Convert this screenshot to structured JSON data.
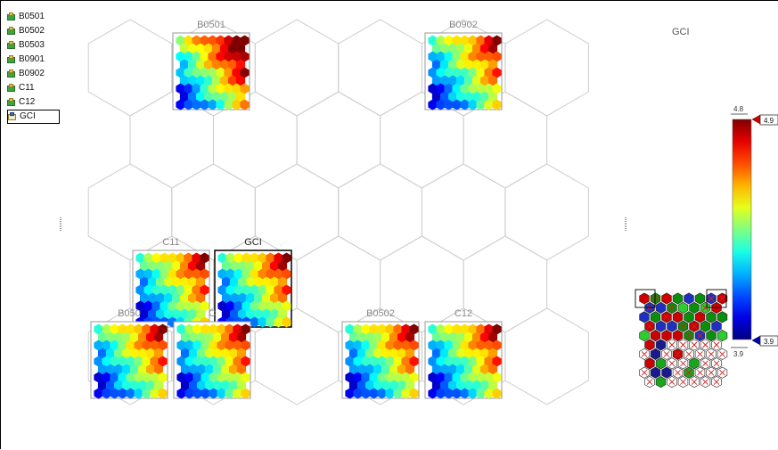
{
  "variables": [
    {
      "label": "B0501",
      "selected": false
    },
    {
      "label": "B0502",
      "selected": false
    },
    {
      "label": "B0503",
      "selected": false
    },
    {
      "label": "B0901",
      "selected": false
    },
    {
      "label": "B0902",
      "selected": false
    },
    {
      "label": "C11",
      "selected": false
    },
    {
      "label": "C12",
      "selected": false
    },
    {
      "label": "GCI",
      "selected": true
    }
  ],
  "component_planes": [
    {
      "label": "B0501",
      "cx": 0,
      "cy": 0
    },
    {
      "label": "B0902",
      "cx": 3,
      "cy": 0
    },
    {
      "label": "C11",
      "cx": 0.5,
      "cy": 2.6
    },
    {
      "label": "GCI",
      "cx": 1.5,
      "cy": 2.6
    },
    {
      "label": "B050",
      "cx": 0,
      "cy": 3.5
    },
    {
      "label": "C",
      "cx": 1,
      "cy": 3.5
    },
    {
      "label": "B0502",
      "cx": 3,
      "cy": 3.5
    },
    {
      "label": "C12",
      "cx": 4,
      "cy": 3.5
    }
  ],
  "legend": {
    "title": "GCI",
    "max_label": "4.8",
    "min_label": "3.9",
    "upper_handle": "4.9",
    "lower_handle": "3.9"
  },
  "colors": {
    "map_frame": "#999999",
    "active_frame": "#000000",
    "hex_grid": "#cccccc"
  }
}
